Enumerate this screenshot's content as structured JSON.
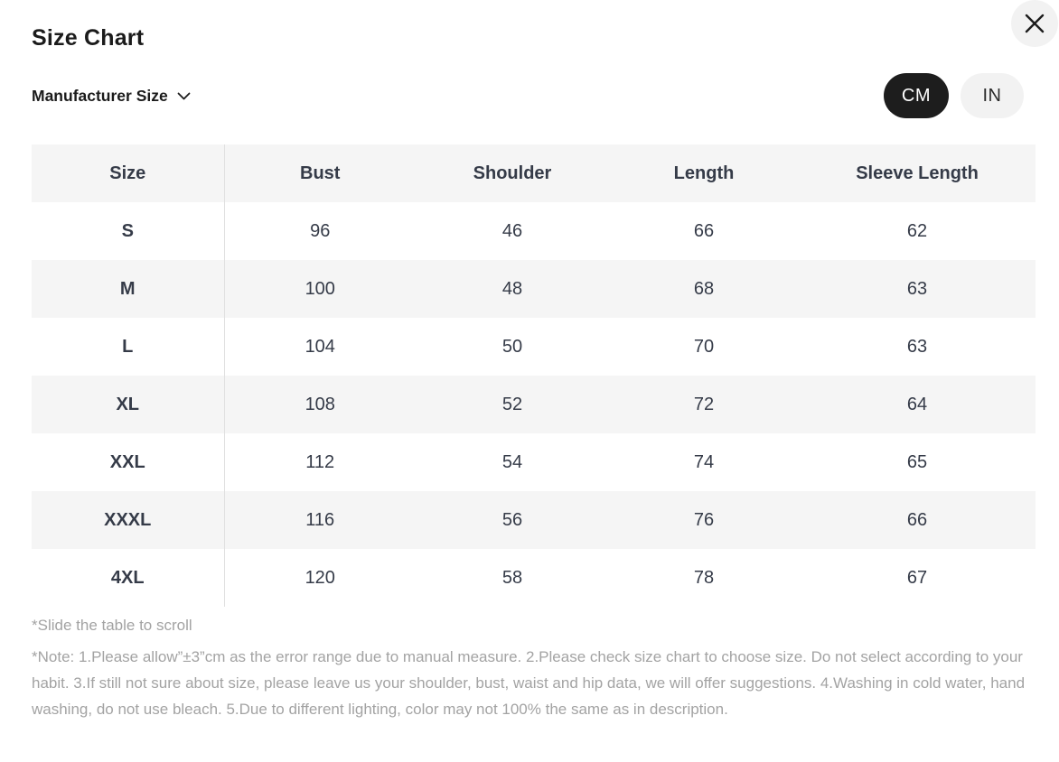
{
  "modal": {
    "title": "Size Chart"
  },
  "controls": {
    "manufacturer_size_label": "Manufacturer Size",
    "unit_toggle": {
      "cm_label": "CM",
      "in_label": "IN",
      "selected": "CM"
    }
  },
  "size_table": {
    "unit": "cm",
    "columns": [
      "Size",
      "Bust",
      "Shoulder",
      "Length",
      "Sleeve Length"
    ],
    "rows": [
      [
        "S",
        "96",
        "46",
        "66",
        "62"
      ],
      [
        "M",
        "100",
        "48",
        "68",
        "63"
      ],
      [
        "L",
        "104",
        "50",
        "70",
        "63"
      ],
      [
        "XL",
        "108",
        "52",
        "72",
        "64"
      ],
      [
        "XXL",
        "112",
        "54",
        "74",
        "65"
      ],
      [
        "XXXL",
        "116",
        "56",
        "76",
        "66"
      ],
      [
        "4XL",
        "120",
        "58",
        "78",
        "67"
      ]
    ]
  },
  "footer": {
    "scroll_hint": "*Slide the table to scroll",
    "note": "*Note: 1.Please allow”±3”cm as the error range due to manual measure. 2.Please check size chart to choose size. Do not select according to your habit. 3.If still not sure about size, please leave us your shoulder, bust, waist and hip data, we will offer suggestions. 4.Washing in cold water, hand washing, do not use bleach. 5.Due to different lighting, color may not 100% the same as in description."
  },
  "colors": {
    "selected_pill_bg": "#1d1d1d",
    "selected_pill_text": "#ffffff",
    "unselected_pill_bg": "#f2f2f2",
    "close_button_bg": "#f2f2f2",
    "table_stripe": "#f5f5f5",
    "table_divider": "#e0e0e0",
    "table_text": "#353b48",
    "heading_text": "#1b1b1b",
    "note_text": "#a3a3a3"
  }
}
